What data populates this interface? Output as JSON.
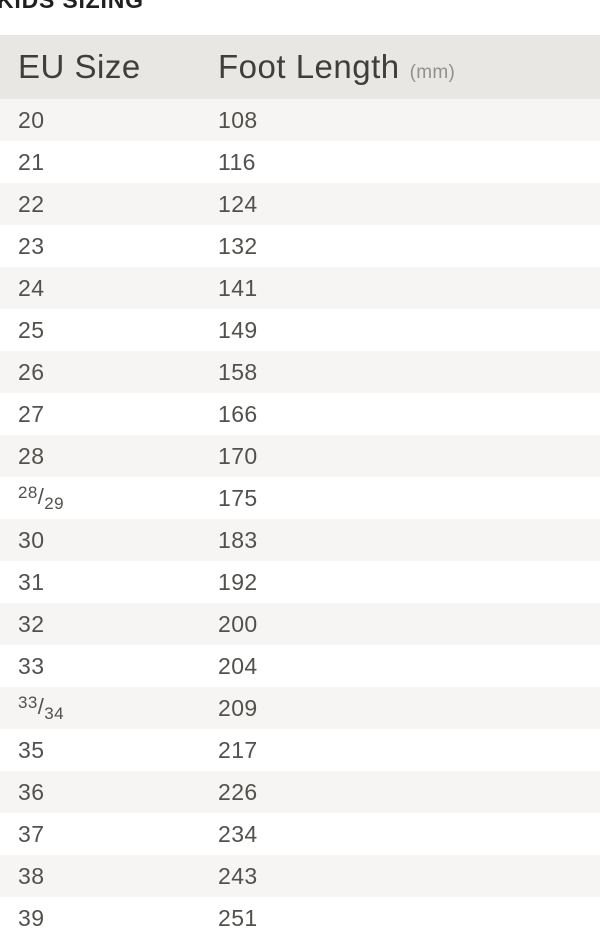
{
  "page_title": "KIDS SIZING",
  "table": {
    "headers": {
      "col1": "EU Size",
      "col2": "Foot Length",
      "col2_unit": "(mm)"
    },
    "rows": [
      {
        "eu": "20",
        "mm": "108"
      },
      {
        "eu": "21",
        "mm": "116"
      },
      {
        "eu": "22",
        "mm": "124"
      },
      {
        "eu": "23",
        "mm": "132"
      },
      {
        "eu": "24",
        "mm": "141"
      },
      {
        "eu": "25",
        "mm": "149"
      },
      {
        "eu": "26",
        "mm": "158"
      },
      {
        "eu": "27",
        "mm": "166"
      },
      {
        "eu": "28",
        "mm": "170"
      },
      {
        "eu": "28/29",
        "mm": "175"
      },
      {
        "eu": "30",
        "mm": "183"
      },
      {
        "eu": "31",
        "mm": "192"
      },
      {
        "eu": "32",
        "mm": "200"
      },
      {
        "eu": "33",
        "mm": "204"
      },
      {
        "eu": "33/34",
        "mm": "209"
      },
      {
        "eu": "35",
        "mm": "217"
      },
      {
        "eu": "36",
        "mm": "226"
      },
      {
        "eu": "37",
        "mm": "234"
      },
      {
        "eu": "38",
        "mm": "243"
      },
      {
        "eu": "39",
        "mm": "251"
      }
    ]
  },
  "colors": {
    "header_bg": "#e9e7e4",
    "stripe_bg": "#f6f5f3",
    "header_text": "#3f3e3c",
    "unit_text": "#92918e",
    "row_text": "#53514e",
    "title_text": "#1f1f1f"
  }
}
